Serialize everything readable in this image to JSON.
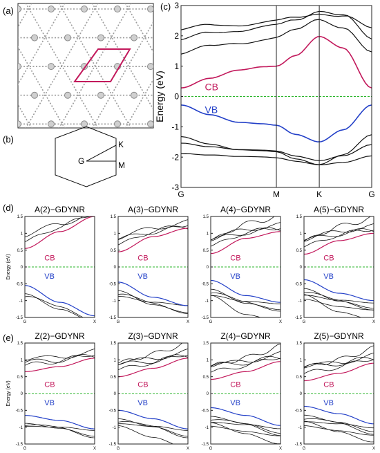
{
  "panels": {
    "a_label": "(a)",
    "b_label": "(b)",
    "c_label": "(c)",
    "d_label": "(d)",
    "e_label": "(e)"
  },
  "hexagon": {
    "G": "G",
    "K": "K",
    "M": "M"
  },
  "colors": {
    "cb": "#c2185b",
    "vb": "#2340c8",
    "fermi": "#2bb52b",
    "bands": "#111111",
    "cell": "#c2185b"
  },
  "chart_data": [
    {
      "type": "line",
      "id": "c",
      "xlabel": "",
      "ylabel": "Energy (eV)",
      "ylim": [
        -3,
        3
      ],
      "xticks": [
        "G",
        "M",
        "K",
        "G"
      ],
      "yticks": [
        "3",
        "2",
        "1",
        "0",
        "-1",
        "-2",
        "-3"
      ],
      "annotations": {
        "cb": "CB",
        "vb": "VB"
      },
      "series": [
        {
          "name": "CB",
          "x": [
            0,
            0.3,
            0.6,
            0.86,
            1.0,
            1.2,
            1.45,
            1.7,
            2.0
          ],
          "y": [
            0.28,
            0.6,
            0.87,
            0.98,
            1.0,
            1.35,
            1.98,
            1.6,
            0.28
          ]
        },
        {
          "name": "VB",
          "x": [
            0,
            0.3,
            0.6,
            0.86,
            1.0,
            1.2,
            1.45,
            1.7,
            2.0
          ],
          "y": [
            -0.28,
            -0.6,
            -0.85,
            -0.9,
            -0.95,
            -1.25,
            -1.5,
            -1.1,
            -0.28
          ]
        }
      ]
    },
    {
      "type": "line",
      "id": "d1",
      "title": "A(2)−GDYNR",
      "ylabel": "Energy (eV)",
      "xticks": [
        "G",
        "X"
      ],
      "yticks": [
        "1.5",
        "1",
        "0.5",
        "0",
        "-0.5",
        "-1",
        "-1.5"
      ],
      "ylim": [
        -1.5,
        1.5
      ],
      "annotations": {
        "cb": "CB",
        "vb": "VB"
      },
      "series": [
        {
          "name": "CB",
          "x": [
            0,
            0.5,
            1
          ],
          "y": [
            0.55,
            1.05,
            1.5
          ]
        },
        {
          "name": "VB",
          "x": [
            0,
            0.5,
            1
          ],
          "y": [
            -0.55,
            -1.05,
            -1.45
          ]
        }
      ]
    },
    {
      "type": "line",
      "id": "d2",
      "title": "A(3)−GDYNR",
      "xticks": [
        "G",
        "X"
      ],
      "yticks": [
        "1.5",
        "1",
        "0.5",
        "0",
        "-0.5",
        "-1",
        "-1.5"
      ],
      "ylim": [
        -1.5,
        1.5
      ],
      "annotations": {
        "cb": "CB",
        "vb": "VB"
      },
      "series": [
        {
          "name": "CB",
          "x": [
            0,
            0.5,
            1
          ],
          "y": [
            0.45,
            0.9,
            1.15
          ]
        },
        {
          "name": "VB",
          "x": [
            0,
            0.5,
            1
          ],
          "y": [
            -0.45,
            -0.9,
            -1.15
          ]
        }
      ]
    },
    {
      "type": "line",
      "id": "d3",
      "title": "A(4)−GDYNR",
      "xticks": [
        "G",
        "X"
      ],
      "yticks": [
        "1.5",
        "1",
        "0.5",
        "0",
        "-0.5",
        "-1",
        "-1.5"
      ],
      "ylim": [
        -1.5,
        1.5
      ],
      "annotations": {
        "cb": "CB",
        "vb": "VB"
      },
      "series": [
        {
          "name": "CB",
          "x": [
            0,
            0.5,
            1
          ],
          "y": [
            0.4,
            0.85,
            1.05
          ]
        },
        {
          "name": "VB",
          "x": [
            0,
            0.5,
            1
          ],
          "y": [
            -0.4,
            -0.85,
            -1.05
          ]
        }
      ]
    },
    {
      "type": "line",
      "id": "d4",
      "title": "A(5)−GDYNR",
      "xticks": [
        "G",
        "X"
      ],
      "yticks": [
        "1.5",
        "1",
        "0.5",
        "0",
        "-0.5",
        "-1",
        "-1.5"
      ],
      "ylim": [
        -1.5,
        1.5
      ],
      "annotations": {
        "cb": "CB",
        "vb": "VB"
      },
      "series": [
        {
          "name": "CB",
          "x": [
            0,
            0.5,
            1
          ],
          "y": [
            0.38,
            0.78,
            1.0
          ]
        },
        {
          "name": "VB",
          "x": [
            0,
            0.5,
            1
          ],
          "y": [
            -0.38,
            -0.78,
            -1.0
          ]
        }
      ]
    },
    {
      "type": "line",
      "id": "e1",
      "title": "Z(2)−GDYNR",
      "ylabel": "Energy (eV)",
      "xticks": [
        "G",
        "X"
      ],
      "yticks": [
        "1.5",
        "1",
        "0.5",
        "0",
        "-0.5",
        "-1",
        "-1.5"
      ],
      "ylim": [
        -1.5,
        1.5
      ],
      "annotations": {
        "cb": "CB",
        "vb": "VB"
      },
      "series": [
        {
          "name": "CB",
          "x": [
            0,
            0.5,
            1
          ],
          "y": [
            0.65,
            0.8,
            1.05
          ]
        },
        {
          "name": "VB",
          "x": [
            0,
            0.5,
            1
          ],
          "y": [
            -0.65,
            -0.8,
            -1.05
          ]
        }
      ]
    },
    {
      "type": "line",
      "id": "e2",
      "title": "Z(3)−GDYNR",
      "xticks": [
        "G",
        "X"
      ],
      "yticks": [
        "1.5",
        "1",
        "0.5",
        "0",
        "-0.5",
        "-1",
        "-1.5"
      ],
      "ylim": [
        -1.5,
        1.5
      ],
      "annotations": {
        "cb": "CB",
        "vb": "VB"
      },
      "series": [
        {
          "name": "CB",
          "x": [
            0,
            0.5,
            1
          ],
          "y": [
            0.5,
            0.75,
            1.05
          ]
        },
        {
          "name": "VB",
          "x": [
            0,
            0.5,
            1
          ],
          "y": [
            -0.5,
            -0.75,
            -1.05
          ]
        }
      ]
    },
    {
      "type": "line",
      "id": "e3",
      "title": "Z(4)−GDYNR",
      "xticks": [
        "G",
        "X"
      ],
      "yticks": [
        "1.5",
        "1",
        "0.5",
        "0",
        "-0.5",
        "-1",
        "-1.5"
      ],
      "ylim": [
        -1.5,
        1.5
      ],
      "annotations": {
        "cb": "CB",
        "vb": "VB"
      },
      "series": [
        {
          "name": "CB",
          "x": [
            0,
            0.5,
            1
          ],
          "y": [
            0.42,
            0.65,
            0.95
          ]
        },
        {
          "name": "VB",
          "x": [
            0,
            0.5,
            1
          ],
          "y": [
            -0.42,
            -0.65,
            -0.95
          ]
        }
      ]
    },
    {
      "type": "line",
      "id": "e4",
      "title": "Z(5)−GDYNR",
      "xticks": [
        "G",
        "X"
      ],
      "yticks": [
        "1.5",
        "1",
        "0.5",
        "0",
        "-0.5",
        "-1",
        "-1.5"
      ],
      "ylim": [
        -1.5,
        1.5
      ],
      "annotations": {
        "cb": "CB",
        "vb": "VB"
      },
      "series": [
        {
          "name": "CB",
          "x": [
            0,
            0.5,
            1
          ],
          "y": [
            0.38,
            0.6,
            0.9
          ]
        },
        {
          "name": "VB",
          "x": [
            0,
            0.5,
            1
          ],
          "y": [
            -0.38,
            -0.6,
            -0.9
          ]
        }
      ]
    }
  ]
}
